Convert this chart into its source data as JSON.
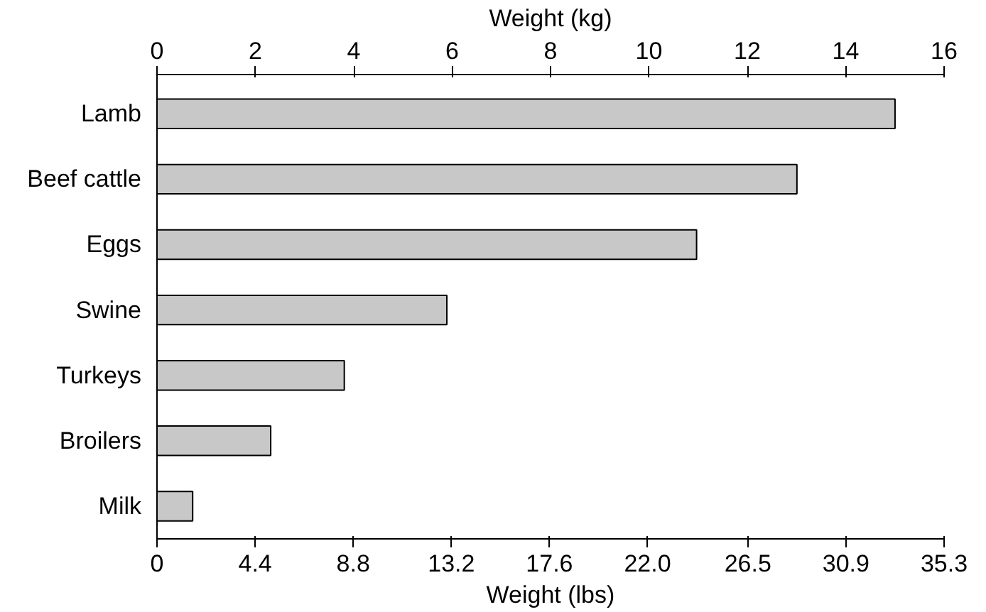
{
  "chart_data": {
    "type": "bar",
    "orientation": "horizontal",
    "categories": [
      "Lamb",
      "Beef cattle",
      "Eggs",
      "Swine",
      "Turkeys",
      "Broilers",
      "Milk"
    ],
    "values": [
      33.1,
      28.7,
      24.2,
      13.0,
      8.4,
      5.1,
      1.6
    ],
    "color": "#c8c8c8",
    "xlabel": "Weight (lbs)",
    "x2label": "Weight (kg)",
    "xlim": [
      0,
      35.3
    ],
    "xticks": [
      0,
      4.4,
      8.8,
      13.2,
      17.6,
      {
        "value": 22.0,
        "label": "22.0"
      },
      26.5,
      30.9,
      35.3
    ],
    "x2lim": [
      0,
      16
    ],
    "x2ticks": [
      0,
      2,
      4,
      6,
      8,
      10,
      12,
      14,
      16
    ],
    "grid": false
  }
}
